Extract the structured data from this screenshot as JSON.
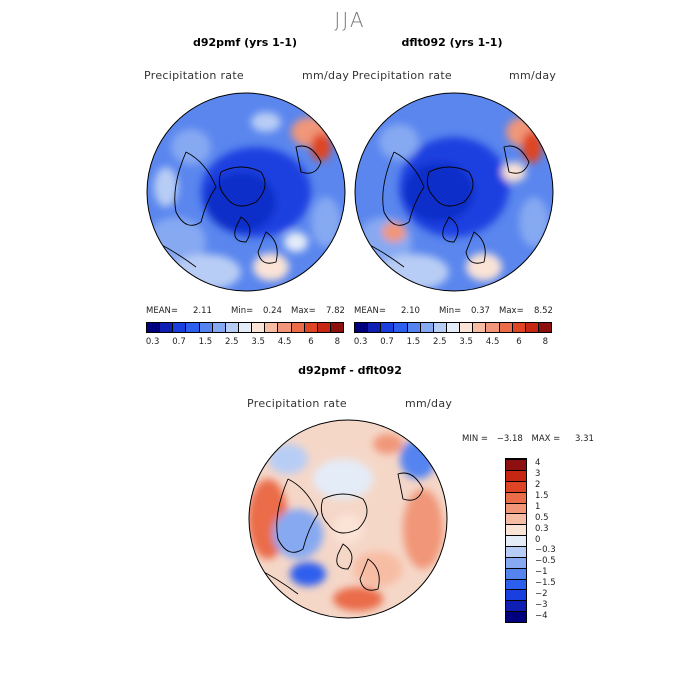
{
  "header": {
    "season": "JJA"
  },
  "panel_left": {
    "title": "d92pmf (yrs 1-1)",
    "variable": "Precipitation rate",
    "units": "mm/day",
    "stats": {
      "mean_label": "MEAN=",
      "mean": "2.11",
      "min_label": "Min=",
      "min": "0.24",
      "max_label": "Max=",
      "max": "7.82"
    }
  },
  "panel_right": {
    "title": "dflt092 (yrs 1-1)",
    "variable": "Precipitation rate",
    "units": "mm/day",
    "stats": {
      "mean_label": "MEAN=",
      "mean": "2.10",
      "min_label": "Min=",
      "min": "0.37",
      "max_label": "Max=",
      "max": "8.52"
    }
  },
  "colorbar_top": {
    "colors": [
      "#00007f",
      "#0f1fb3",
      "#1a3fe0",
      "#2d5fee",
      "#5584f0",
      "#86a9f2",
      "#b8cdf5",
      "#e4ecf8",
      "#fbe3d6",
      "#f7bda4",
      "#f19678",
      "#ea6c48",
      "#df4424",
      "#c52712",
      "#8e0f0f"
    ],
    "tick_labels": [
      "0.3",
      "0.7",
      "1.5",
      "2.5",
      "3.5",
      "4.5",
      "6",
      "8"
    ]
  },
  "panel_diff": {
    "title": "d92pmf - dflt092",
    "variable": "Precipitation rate",
    "units": "mm/day",
    "minmax": {
      "min_label": "MIN =",
      "min": "−3.18",
      "max_label": "MAX =",
      "max": "3.31"
    }
  },
  "colorbar_diff": {
    "colors": [
      "#00007f",
      "#0f1fb3",
      "#1a3fe0",
      "#2d5fee",
      "#5584f0",
      "#86a9f2",
      "#b8cdf5",
      "#e4ecf8",
      "#fbe3d6",
      "#f7bda4",
      "#f19678",
      "#ea6c48",
      "#df4424",
      "#c52712",
      "#8e0f0f"
    ],
    "tick_labels": [
      "−4",
      "−3",
      "−2",
      "−1.5",
      "−1",
      "−0.5",
      "−0.3",
      "0",
      "0.3",
      "0.5",
      "1",
      "1.5",
      "2",
      "3",
      "4"
    ]
  }
}
